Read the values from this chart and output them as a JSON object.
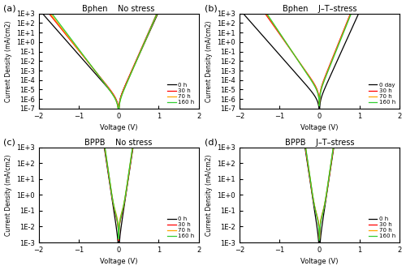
{
  "panels": [
    {
      "label": "(a)",
      "title1": "Bphen",
      "title2": "No stress",
      "legend_labels": [
        "0 h",
        "30 h",
        "70 h",
        "160 h"
      ],
      "colors": [
        "black",
        "red",
        "orange",
        "limegreen"
      ],
      "ylim_log": [
        -7,
        3
      ],
      "curve_type": "bphen_no_stress"
    },
    {
      "label": "(b)",
      "title1": "Bphen",
      "title2": "J–T–stress",
      "legend_labels": [
        "0 day",
        "30 h",
        "70 h",
        "160 h"
      ],
      "colors": [
        "black",
        "red",
        "orange",
        "limegreen"
      ],
      "ylim_log": [
        -7,
        3
      ],
      "curve_type": "bphen_jt_stress"
    },
    {
      "label": "(c)",
      "title1": "BPPB",
      "title2": "No stress",
      "legend_labels": [
        "0 h",
        "30 h",
        "70 h",
        "160 h"
      ],
      "colors": [
        "black",
        "red",
        "orange",
        "limegreen"
      ],
      "ylim_log": [
        -3,
        3
      ],
      "curve_type": "bppb_no_stress"
    },
    {
      "label": "(d)",
      "title1": "BPPB",
      "title2": "J–T–stress",
      "legend_labels": [
        "0 h",
        "30 h",
        "70 h",
        "160 h"
      ],
      "colors": [
        "black",
        "red",
        "orange",
        "limegreen"
      ],
      "ylim_log": [
        -3,
        3
      ],
      "curve_type": "bppb_jt_stress"
    }
  ],
  "xlabel": "Voltage (V)",
  "ylabel": "Current Density (mA/cm2)",
  "xlim": [
    -2,
    2
  ],
  "background_color": "#ffffff"
}
